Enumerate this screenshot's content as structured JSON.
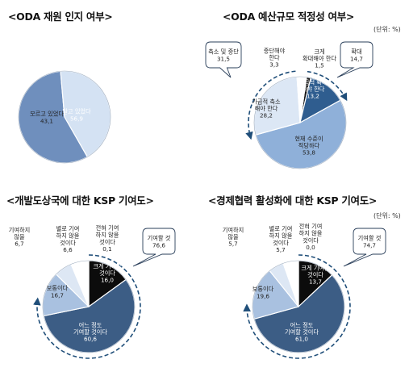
{
  "titles": {
    "t1": "<ODA 재원 인지 여부>",
    "t2": "<ODA 예산규모 적정성 여부>",
    "t3": "<개발도상국에 대한 KSP 기여도>",
    "t4": "<경제협력 활성화에 대한 KSP 기여도>"
  },
  "units": {
    "u2": "(단위: %)",
    "u4": "(단위: %)"
  },
  "chart_data": [
    {
      "type": "pie",
      "title": "<ODA 재원 인지 여부>",
      "slices": [
        {
          "label": "알고 있었다",
          "value": 56.9,
          "color": "#6f8fbd"
        },
        {
          "label": "모르고 있었다",
          "value": 43.1,
          "color": "#d4e2f3"
        }
      ]
    },
    {
      "type": "pie",
      "title": "<ODA 예산규모 적정성 여부>",
      "unit": "(단위: %)",
      "slices": [
        {
          "label": "크게 확대해야 한다",
          "value": 1.5,
          "color": "#1b1b1b"
        },
        {
          "label": "가급적 확대해야 한다",
          "value": 13.2,
          "color": "#2f5d8f"
        },
        {
          "label": "현재 수준이 적당하다",
          "value": 53.8,
          "color": "#8fb0d9"
        },
        {
          "label": "가급적 축소해야 한다",
          "value": 28.2,
          "color": "#dce7f5"
        },
        {
          "label": "중단해야 한다",
          "value": 3.3,
          "color": "#ffffff"
        }
      ],
      "groups": [
        {
          "label": "확대",
          "value": 14.7
        },
        {
          "label": "축소 및 중단",
          "value": 31.5
        }
      ]
    },
    {
      "type": "pie",
      "title": "<개발도상국에 대한 KSP 기여도>",
      "slices": [
        {
          "label": "크게 기여할 것이다",
          "value": 16.0,
          "color": "#0c0c0c"
        },
        {
          "label": "어느 정도 기여할 것이다",
          "value": 60.6,
          "color": "#3c5d85"
        },
        {
          "label": "보통이다",
          "value": 16.7,
          "color": "#a9c1e0"
        },
        {
          "label": "기여하지 않을",
          "value": 6.7,
          "color": "#dde7f4"
        },
        {
          "label": "별로 기여하지 않을 것이다",
          "value": 6.6,
          "color": "#ffffff"
        },
        {
          "label": "전혀 기여하지 않을 것이다",
          "value": 0.1,
          "color": "#ffffff"
        }
      ],
      "groups": [
        {
          "label": "기여할 것",
          "value": 76.6
        },
        {
          "label": "기여하지 않을",
          "value": 6.7
        }
      ]
    },
    {
      "type": "pie",
      "title": "<경제협력 활성화에 대한 KSP 기여도>",
      "unit": "(단위: %)",
      "slices": [
        {
          "label": "크게 기여할 것이다",
          "value": 13.7,
          "color": "#0c0c0c"
        },
        {
          "label": "어느 정도 기여할 것이다",
          "value": 61.0,
          "color": "#3c5d85"
        },
        {
          "label": "보통이다",
          "value": 19.6,
          "color": "#a9c1e0"
        },
        {
          "label": "기여하지 않을",
          "value": 5.7,
          "color": "#dde7f4"
        },
        {
          "label": "별로 기여하지 않을 것이다",
          "value": 5.7,
          "color": "#ffffff"
        },
        {
          "label": "전혀 기여하지 않을 것이다",
          "value": 0.0,
          "color": "#ffffff"
        }
      ],
      "groups": [
        {
          "label": "기여할 것",
          "value": 74.7
        },
        {
          "label": "기여하지 않을",
          "value": 5.7
        }
      ]
    }
  ]
}
